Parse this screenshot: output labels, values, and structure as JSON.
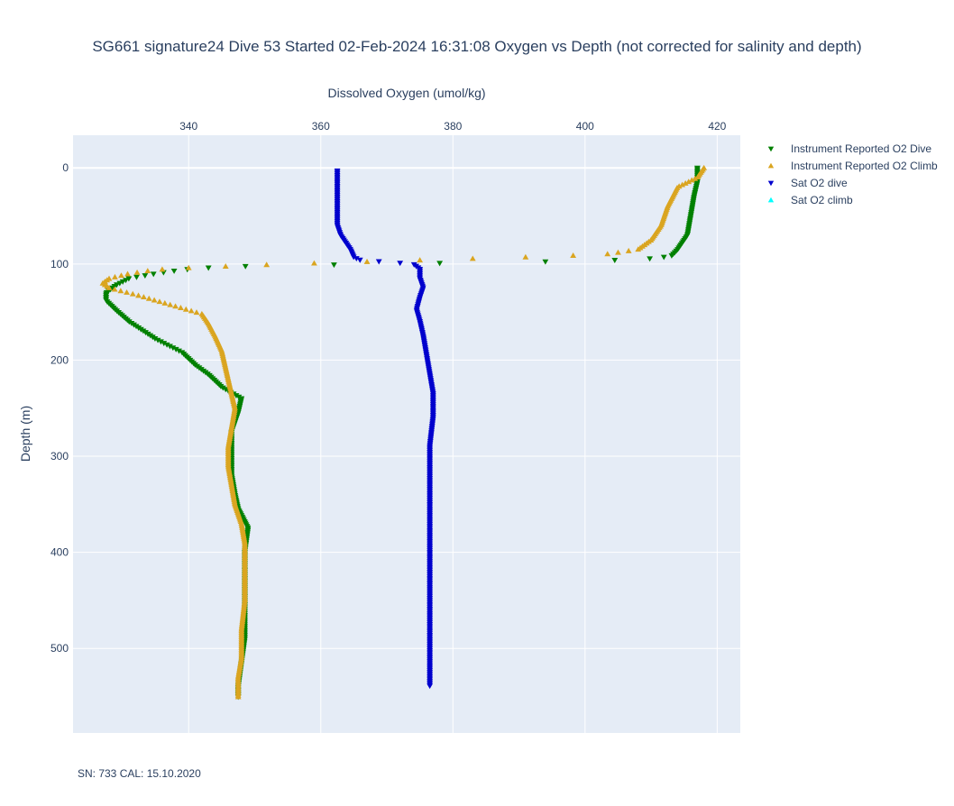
{
  "chart_data": {
    "type": "scatter",
    "title": "SG661 signature24 Dive 53 Started 02-Feb-2024 16:31:08  Oxygen vs Depth (not corrected for salinity and depth)",
    "xlabel": "Dissolved Oxygen (umol/kg)",
    "ylabel": "Depth (m)",
    "xlim": [
      322.5,
      423.5
    ],
    "ylim": [
      588,
      -34
    ],
    "x_axis_side": "top",
    "y_reversed": true,
    "x_ticks": [
      340,
      360,
      380,
      400,
      420
    ],
    "y_ticks": [
      0,
      100,
      200,
      300,
      400,
      500
    ],
    "grid": true,
    "legend_position": "top-right",
    "annotation": "SN: 733  CAL: 15.10.2020",
    "series": [
      {
        "name": "Instrument Reported O2 Dive",
        "color": "#008000",
        "marker": "triangle-down",
        "profile": [
          [
            417,
            0
          ],
          [
            417,
            15
          ],
          [
            416.5,
            30
          ],
          [
            416,
            50
          ],
          [
            415.5,
            70
          ],
          [
            414,
            85
          ],
          [
            413,
            92
          ],
          [
            409,
            95
          ],
          [
            400,
            97
          ],
          [
            390,
            98
          ],
          [
            380,
            99
          ],
          [
            370,
            100
          ],
          [
            360,
            101
          ],
          [
            350,
            102
          ],
          [
            343,
            104
          ],
          [
            339,
            106
          ],
          [
            335,
            110
          ],
          [
            331,
            115
          ],
          [
            329,
            122
          ],
          [
            327.5,
            130
          ],
          [
            327.5,
            138
          ],
          [
            329,
            148
          ],
          [
            331,
            160
          ],
          [
            335,
            178
          ],
          [
            339,
            192
          ],
          [
            341,
            205
          ],
          [
            343,
            215
          ],
          [
            345,
            228
          ],
          [
            348,
            240
          ],
          [
            347.5,
            255
          ],
          [
            347,
            265
          ],
          [
            346.5,
            275
          ],
          [
            346.5,
            285
          ],
          [
            346.5,
            300
          ],
          [
            346.5,
            320
          ],
          [
            347,
            340
          ],
          [
            347.5,
            355
          ],
          [
            349,
            375
          ],
          [
            348.5,
            400
          ],
          [
            348.5,
            430
          ],
          [
            348.5,
            460
          ],
          [
            348.5,
            490
          ],
          [
            348,
            515
          ],
          [
            347.5,
            540
          ],
          [
            347.5,
            552
          ]
        ]
      },
      {
        "name": "Instrument Reported O2 Climb",
        "color": "#DAA520",
        "marker": "triangle-up",
        "profile": [
          [
            418,
            0
          ],
          [
            417,
            10
          ],
          [
            414,
            20
          ],
          [
            412.5,
            40
          ],
          [
            411.5,
            60
          ],
          [
            410,
            75
          ],
          [
            408,
            85
          ],
          [
            403,
            90
          ],
          [
            395,
            92
          ],
          [
            385,
            94
          ],
          [
            375,
            96
          ],
          [
            365,
            98
          ],
          [
            355,
            100
          ],
          [
            347,
            102
          ],
          [
            340,
            104
          ],
          [
            335,
            106
          ],
          [
            331,
            110
          ],
          [
            328,
            115
          ],
          [
            327,
            120
          ],
          [
            328,
            125
          ],
          [
            332,
            132
          ],
          [
            337,
            142
          ],
          [
            342,
            152
          ],
          [
            343,
            162
          ],
          [
            344,
            175
          ],
          [
            345,
            190
          ],
          [
            345.5,
            205
          ],
          [
            346,
            220
          ],
          [
            346.5,
            235
          ],
          [
            347,
            250
          ],
          [
            346.5,
            270
          ],
          [
            346,
            290
          ],
          [
            346,
            310
          ],
          [
            346.5,
            330
          ],
          [
            347,
            350
          ],
          [
            348,
            370
          ],
          [
            348.5,
            390
          ],
          [
            348.5,
            420
          ],
          [
            348.5,
            450
          ],
          [
            348,
            480
          ],
          [
            348,
            510
          ],
          [
            347.5,
            530
          ],
          [
            347.5,
            552
          ]
        ]
      },
      {
        "name": "Sat O2 dive",
        "color": "#0000CD",
        "marker": "triangle-down",
        "profile": [
          [
            362.5,
            3
          ],
          [
            362.5,
            30
          ],
          [
            362.5,
            60
          ],
          [
            363,
            70
          ],
          [
            364.5,
            85
          ],
          [
            365,
            93
          ],
          [
            366,
            96
          ],
          [
            370,
            98
          ],
          [
            374,
            100
          ],
          [
            375,
            105
          ],
          [
            375,
            115
          ],
          [
            375.5,
            125
          ],
          [
            375,
            135
          ],
          [
            374.5,
            148
          ],
          [
            375,
            160
          ],
          [
            375.5,
            175
          ],
          [
            376,
            195
          ],
          [
            376.5,
            215
          ],
          [
            377,
            235
          ],
          [
            377,
            260
          ],
          [
            376.5,
            290
          ],
          [
            376.5,
            330
          ],
          [
            376.5,
            380
          ],
          [
            376.5,
            430
          ],
          [
            376.5,
            480
          ],
          [
            376.5,
            540
          ]
        ]
      },
      {
        "name": "Sat O2 climb",
        "color": "#00FFFF",
        "marker": "triangle-up",
        "profile": []
      }
    ]
  }
}
